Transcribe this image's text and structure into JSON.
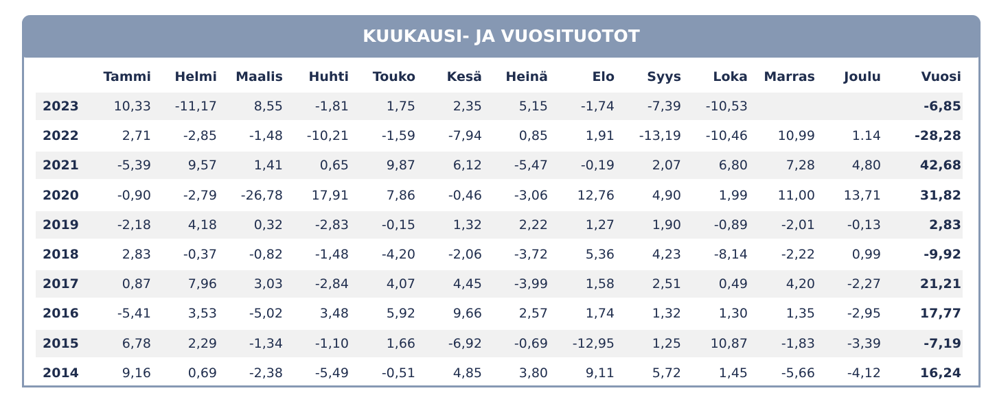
{
  "title": "KUUKAUSI- JA VUOSITUOTOT",
  "table": {
    "columns": [
      "Tammi",
      "Helmi",
      "Maalis",
      "Huhti",
      "Touko",
      "Kesä",
      "Heinä",
      "Elo",
      "Syys",
      "Loka",
      "Marras",
      "Joulu",
      "Vuosi"
    ],
    "rows": [
      {
        "year": "2023",
        "months": [
          "10,33",
          "-11,17",
          "8,55",
          "-1,81",
          "1,75",
          "2,35",
          "5,15",
          "-1,74",
          "-7,39",
          "-10,53"
        ],
        "total": "-6,85"
      },
      {
        "year": "2022",
        "months": [
          "2,71",
          "-2,85",
          "-1,48",
          "-10,21",
          "-1,59",
          "-7,94",
          "0,85",
          "1,91",
          "-13,19",
          "-10,46",
          "10,99",
          "1.14"
        ],
        "total": "-28,28"
      },
      {
        "year": "2021",
        "months": [
          "-5,39",
          "9,57",
          "1,41",
          "0,65",
          "9,87",
          "6,12",
          "-5,47",
          "-0,19",
          "2,07",
          "6,80",
          "7,28",
          "4,80"
        ],
        "total": "42,68"
      },
      {
        "year": "2020",
        "months": [
          "-0,90",
          "-2,79",
          "-26,78",
          "17,91",
          "7,86",
          "-0,46",
          "-3,06",
          "12,76",
          "4,90",
          "1,99",
          "11,00",
          "13,71"
        ],
        "total": "31,82"
      },
      {
        "year": "2019",
        "months": [
          "-2,18",
          "4,18",
          "0,32",
          "-2,83",
          "-0,15",
          "1,32",
          "2,22",
          "1,27",
          "1,90",
          "-0,89",
          "-2,01",
          "-0,13"
        ],
        "total": "2,83"
      },
      {
        "year": "2018",
        "months": [
          "2,83",
          "-0,37",
          "-0,82",
          "-1,48",
          "-4,20",
          "-2,06",
          "-3,72",
          "5,36",
          "4,23",
          "-8,14",
          "-2,22",
          "0,99"
        ],
        "total": "-9,92"
      },
      {
        "year": "2017",
        "months": [
          "0,87",
          "7,96",
          "3,03",
          "-2,84",
          "4,07",
          "4,45",
          "-3,99",
          "1,58",
          "2,51",
          "0,49",
          "4,20",
          "-2,27"
        ],
        "total": "21,21"
      },
      {
        "year": "2016",
        "months": [
          "-5,41",
          "3,53",
          "-5,02",
          "3,48",
          "5,92",
          "9,66",
          "2,57",
          "1,74",
          "1,32",
          "1,30",
          "1,35",
          "-2,95"
        ],
        "total": "17,77"
      },
      {
        "year": "2015",
        "months": [
          "6,78",
          "2,29",
          "-1,34",
          "-1,10",
          "1,66",
          "-6,92",
          "-0,69",
          "-12,95",
          "1,25",
          "10,87",
          "-1,83",
          "-3,39"
        ],
        "total": "-7,19"
      },
      {
        "year": "2014",
        "months": [
          "9,16",
          "0,69",
          "-2,38",
          "-5,49",
          "-0,51",
          "4,85",
          "3,80",
          "9,11",
          "5,72",
          "1,45",
          "-5,66",
          "-4,12"
        ],
        "total": "16,24"
      }
    ]
  }
}
